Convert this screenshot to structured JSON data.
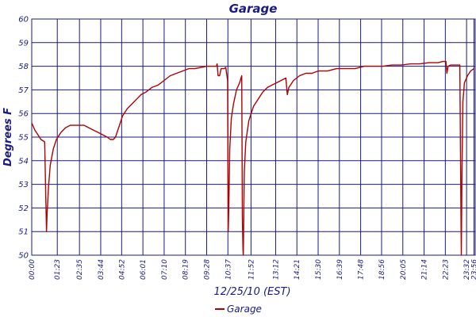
{
  "chart_data": {
    "type": "line",
    "title": "Garage",
    "xlabel": "12/25/10 (EST)",
    "ylabel": "Degrees F",
    "ylim": [
      50,
      60
    ],
    "yticks": [
      50,
      51,
      52,
      53,
      54,
      55,
      56,
      57,
      58,
      59,
      60
    ],
    "xlim_minutes": [
      0,
      1440
    ],
    "xticks": [
      "00:00",
      "01:23",
      "02:35",
      "03:44",
      "04:52",
      "06:01",
      "07:10",
      "08:19",
      "09:28",
      "10:37",
      "11:52",
      "13:12",
      "14:21",
      "15:30",
      "16:39",
      "17:48",
      "18:56",
      "20:05",
      "21:14",
      "22:23",
      "23:32",
      "23:56"
    ],
    "grid": true,
    "legend_position": "bottom-center",
    "colors": {
      "line": "#b00000",
      "grid": "#1a1a80",
      "text": "#1a1a80"
    },
    "series": [
      {
        "name": "Garage",
        "points": [
          [
            "00:00",
            55.6
          ],
          [
            "00:10",
            55.3
          ],
          [
            "00:20",
            55.1
          ],
          [
            "00:30",
            54.9
          ],
          [
            "00:42",
            54.8
          ],
          [
            "00:48",
            51.0
          ],
          [
            "00:50",
            51.8
          ],
          [
            "00:55",
            53.0
          ],
          [
            "01:00",
            53.8
          ],
          [
            "01:10",
            54.5
          ],
          [
            "01:20",
            54.9
          ],
          [
            "01:35",
            55.2
          ],
          [
            "01:50",
            55.4
          ],
          [
            "02:05",
            55.5
          ],
          [
            "02:20",
            55.5
          ],
          [
            "02:35",
            55.5
          ],
          [
            "02:50",
            55.5
          ],
          [
            "03:05",
            55.4
          ],
          [
            "03:20",
            55.3
          ],
          [
            "03:35",
            55.2
          ],
          [
            "03:50",
            55.1
          ],
          [
            "04:05",
            55.0
          ],
          [
            "04:15",
            54.9
          ],
          [
            "04:25",
            54.9
          ],
          [
            "04:32",
            55.0
          ],
          [
            "04:45",
            55.5
          ],
          [
            "04:55",
            55.9
          ],
          [
            "05:10",
            56.2
          ],
          [
            "05:25",
            56.4
          ],
          [
            "05:40",
            56.6
          ],
          [
            "05:55",
            56.8
          ],
          [
            "06:10",
            56.9
          ],
          [
            "06:30",
            57.1
          ],
          [
            "06:50",
            57.2
          ],
          [
            "07:10",
            57.4
          ],
          [
            "07:30",
            57.6
          ],
          [
            "07:50",
            57.7
          ],
          [
            "08:10",
            57.8
          ],
          [
            "08:30",
            57.9
          ],
          [
            "08:50",
            57.9
          ],
          [
            "09:10",
            57.95
          ],
          [
            "09:28",
            58.0
          ],
          [
            "09:45",
            58.0
          ],
          [
            "10:00",
            58.0
          ],
          [
            "10:02",
            58.1
          ],
          [
            "10:05",
            57.6
          ],
          [
            "10:10",
            57.6
          ],
          [
            "10:15",
            57.9
          ],
          [
            "10:25",
            57.9
          ],
          [
            "10:30",
            57.95
          ],
          [
            "10:36",
            57.4
          ],
          [
            "10:38",
            51.0
          ],
          [
            "10:40",
            52.0
          ],
          [
            "10:43",
            54.5
          ],
          [
            "10:48",
            55.8
          ],
          [
            "10:55",
            56.4
          ],
          [
            "11:05",
            57.0
          ],
          [
            "11:15",
            57.3
          ],
          [
            "11:22",
            57.6
          ],
          [
            "11:24",
            51.6
          ],
          [
            "11:26",
            50.2
          ],
          [
            "11:27",
            50.0
          ],
          [
            "11:30",
            53.5
          ],
          [
            "11:35",
            54.8
          ],
          [
            "11:45",
            55.7
          ],
          [
            "12:00",
            56.3
          ],
          [
            "12:15",
            56.6
          ],
          [
            "12:30",
            56.9
          ],
          [
            "12:45",
            57.1
          ],
          [
            "13:00",
            57.2
          ],
          [
            "13:15",
            57.3
          ],
          [
            "13:30",
            57.4
          ],
          [
            "13:45",
            57.5
          ],
          [
            "13:50",
            56.8
          ],
          [
            "13:55",
            57.1
          ],
          [
            "14:10",
            57.4
          ],
          [
            "14:30",
            57.6
          ],
          [
            "14:50",
            57.7
          ],
          [
            "15:10",
            57.7
          ],
          [
            "15:30",
            57.8
          ],
          [
            "16:00",
            57.8
          ],
          [
            "16:30",
            57.9
          ],
          [
            "17:00",
            57.9
          ],
          [
            "17:30",
            57.9
          ],
          [
            "18:00",
            58.0
          ],
          [
            "18:30",
            58.0
          ],
          [
            "19:00",
            58.0
          ],
          [
            "19:30",
            58.05
          ],
          [
            "20:00",
            58.05
          ],
          [
            "20:30",
            58.1
          ],
          [
            "21:00",
            58.1
          ],
          [
            "21:30",
            58.15
          ],
          [
            "22:00",
            58.15
          ],
          [
            "22:15",
            58.2
          ],
          [
            "22:25",
            58.2
          ],
          [
            "22:28",
            57.7
          ],
          [
            "22:32",
            58.0
          ],
          [
            "22:40",
            58.05
          ],
          [
            "23:00",
            58.05
          ],
          [
            "23:10",
            58.05
          ],
          [
            "23:14",
            51.5
          ],
          [
            "23:15",
            50.0
          ],
          [
            "23:17",
            53.5
          ],
          [
            "23:20",
            56.5
          ],
          [
            "23:25",
            57.3
          ],
          [
            "23:35",
            57.6
          ],
          [
            "23:45",
            57.8
          ],
          [
            "23:56",
            57.9
          ]
        ]
      }
    ]
  }
}
